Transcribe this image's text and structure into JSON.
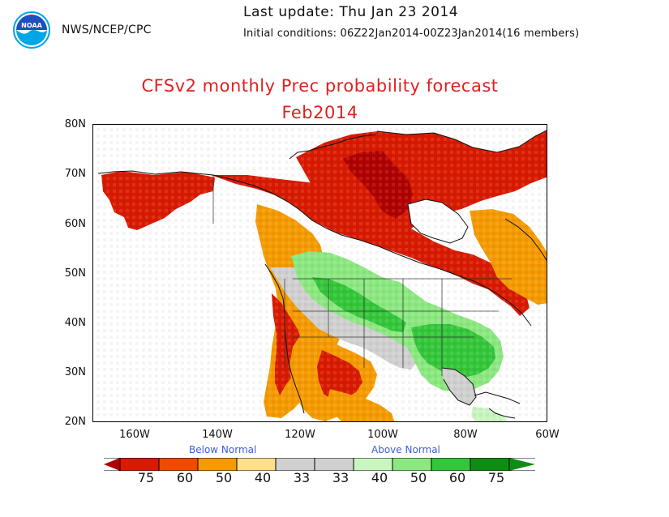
{
  "header": {
    "org": "NWS/NCEP/CPC",
    "last_update": "Last update: Thu Jan 23 2014",
    "initial_conditions": "Initial conditions: 06Z22Jan2014-00Z23Jan2014(16 members)",
    "title": "CFSv2 monthly Prec probability forecast",
    "subtitle": "Feb2014",
    "logo_text": "NOAA"
  },
  "map": {
    "lat_labels": [
      "80N",
      "70N",
      "60N",
      "50N",
      "40N",
      "30N",
      "20N"
    ],
    "lon_labels": [
      "160W",
      "140W",
      "120W",
      "100W",
      "80W",
      "60W"
    ],
    "colors": {
      "below_75": "#b00000",
      "below_60": "#d81a00",
      "below_50": "#f04a00",
      "below_40": "#f59a00",
      "below_33": "#ffe08a",
      "normal": "#d0d0d0",
      "above_40": "#c8f5c0",
      "above_50": "#8be880",
      "above_60": "#34c63a",
      "above_75": "#0f8c14",
      "coast": "#111111"
    }
  },
  "legend": {
    "below_label": "Below Normal",
    "above_label": "Above Normal",
    "ticks": [
      "75",
      "60",
      "50",
      "40",
      "33",
      "33",
      "40",
      "50",
      "60",
      "75"
    ]
  }
}
